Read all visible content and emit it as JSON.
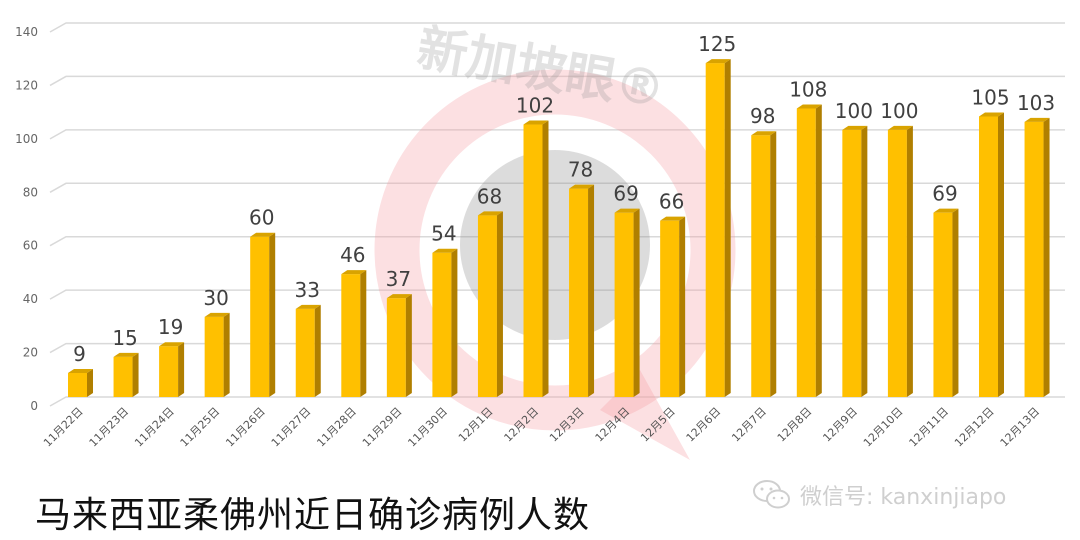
{
  "chart_data": {
    "type": "bar",
    "style": "3d-column",
    "title": "马来西亚柔佛州近日确诊病例人数",
    "xlabel": "",
    "ylabel": "",
    "ylim": [
      0,
      140
    ],
    "yticks": [
      0,
      20,
      40,
      60,
      80,
      100,
      120,
      140
    ],
    "grid": true,
    "legend": null,
    "categories": [
      "11月22日",
      "11月23日",
      "11月24日",
      "11月25日",
      "11月26日",
      "11月27日",
      "11月28日",
      "11月29日",
      "11月30日",
      "12月1日",
      "12月2日",
      "12月3日",
      "12月4日",
      "12月5日",
      "12月6日",
      "12月7日",
      "12月8日",
      "12月9日",
      "12月10日",
      "12月11日",
      "12月12日",
      "12月13日"
    ],
    "values": [
      9,
      15,
      19,
      30,
      60,
      33,
      46,
      37,
      54,
      68,
      102,
      78,
      69,
      66,
      125,
      98,
      108,
      100,
      100,
      69,
      105,
      103
    ],
    "data_labels": true
  },
  "colors": {
    "bar_front": "#ffc000",
    "bar_side": "#b07f00",
    "bar_top": "#d9a300",
    "grid": "#d9d9d9",
    "axis_text": "#666666",
    "label_text": "#404040"
  },
  "title": "马来西亚柔佛州近日确诊病例人数",
  "watermark": {
    "text": "新加坡眼®",
    "account_icon": "wechat-icon",
    "account_text": "微信号: kanxinjiapo"
  }
}
